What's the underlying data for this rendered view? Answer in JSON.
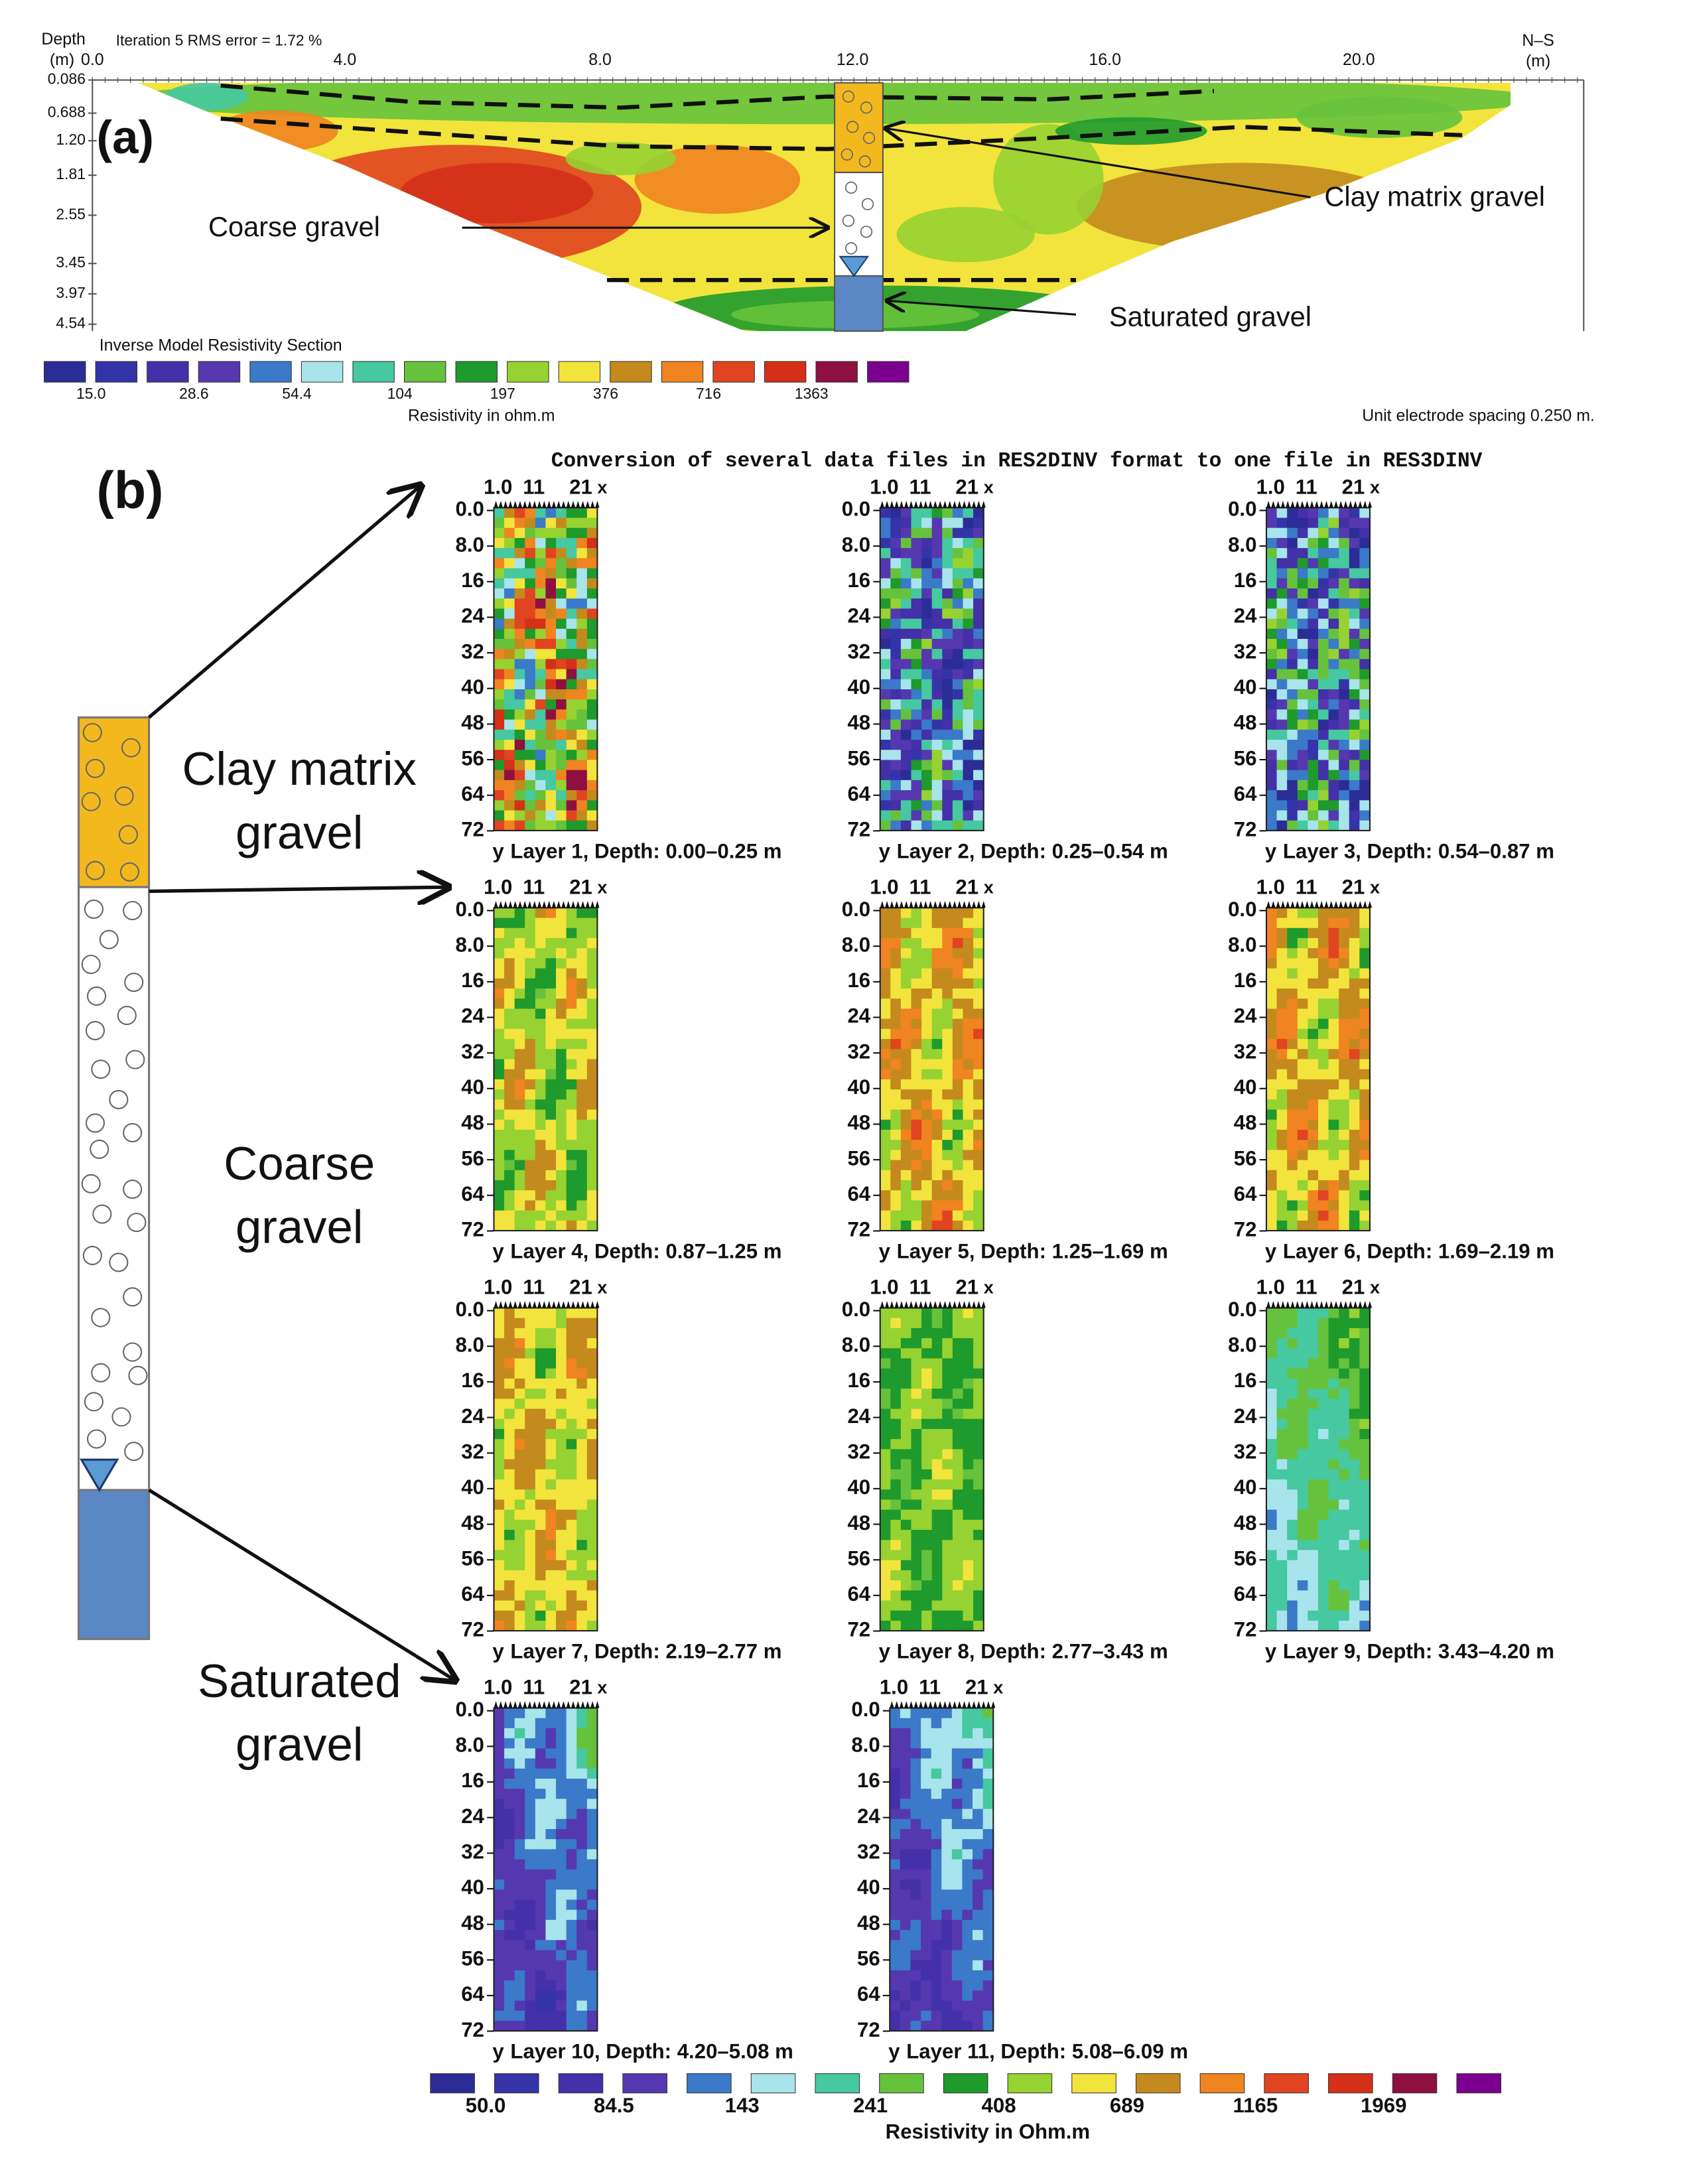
{
  "panel_a": {
    "label": "(a)",
    "depth_label": "Depth",
    "depth_unit": "(m)",
    "iteration": "Iteration 5 RMS error = 1.72 %",
    "x_ticks": [
      "0.0",
      "4.0",
      "8.0",
      "12.0",
      "16.0",
      "20.0"
    ],
    "direction": "N–S",
    "x_unit": "(m)",
    "depth_ticks": [
      "0.086",
      "0.688",
      "1.20",
      "1.81",
      "2.55",
      "3.45",
      "3.97",
      "4.54"
    ],
    "annotations": {
      "coarse": "Coarse gravel",
      "clay": "Clay matrix gravel",
      "saturated": "Saturated gravel"
    },
    "section_title": "Inverse Model Resistivity Section",
    "legend_labels": [
      "15.0",
      "28.6",
      "54.4",
      "104",
      "197",
      "376",
      "716",
      "1363"
    ],
    "legend_title": "Resistivity in ohm.m",
    "spacing": "Unit electrode spacing 0.250 m."
  },
  "panel_b": {
    "label": "(b)",
    "title": "Conversion of several data files in RES2DINV format to one file in RES3DINV",
    "column_labels": {
      "clay": [
        "Clay matrix",
        "gravel"
      ],
      "coarse": [
        "Coarse",
        "gravel"
      ],
      "saturated": [
        "Saturated",
        "gravel"
      ]
    },
    "x_ticks": [
      "1.0",
      "11",
      "21"
    ],
    "x_label": "x",
    "y_label": "y",
    "y_ticks": [
      "0.0",
      "8.0",
      "16",
      "24",
      "32",
      "40",
      "48",
      "56",
      "64",
      "72"
    ],
    "layers": [
      "Layer 1, Depth:  0.00–0.25 m",
      "Layer 2, Depth:  0.25–0.54 m",
      "Layer 3, Depth:  0.54–0.87 m",
      "Layer 4, Depth:  0.87–1.25 m",
      "Layer 5, Depth:  1.25–1.69 m",
      "Layer 6, Depth:  1.69–2.19 m",
      "Layer 7, Depth:  2.19–2.77 m",
      "Layer 8, Depth:  2.77–3.43 m",
      "Layer 9, Depth:  3.43–4.20 m",
      "Layer 10, Depth:  4.20–5.08 m",
      "Layer 11, Depth:  5.08–6.09 m"
    ],
    "legend_labels": [
      "50.0",
      "84.5",
      "143",
      "241",
      "408",
      "689",
      "1165",
      "1969"
    ],
    "legend_title": "Resistivity in Ohm.m"
  },
  "palette": [
    "#2c2c96",
    "#3434a8",
    "#4430a8",
    "#5538b0",
    "#3a7ac8",
    "#a8e4ec",
    "#46c8a0",
    "#66c23c",
    "#1f9a2c",
    "#96d232",
    "#f2e43c",
    "#c48a1e",
    "#f08420",
    "#e04420",
    "#d43018",
    "#8e1040",
    "#7c0090"
  ]
}
